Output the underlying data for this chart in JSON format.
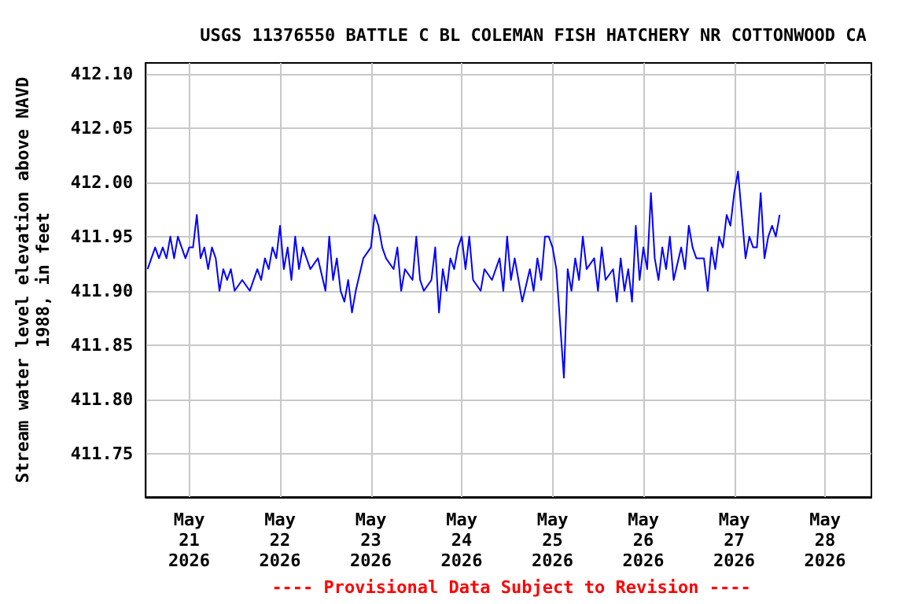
{
  "chart_data": {
    "type": "line",
    "title": "USGS 11376550 BATTLE C BL COLEMAN FISH HATCHERY NR COTTONWOOD CA",
    "ylabel": "Stream water level elevation above NAVD 1988, in feet",
    "annotations": [
      "---- Provisional Data Subject to Revision ----"
    ],
    "xlim": [
      "2026-05-20T12:30",
      "2026-05-28T12:15"
    ],
    "xticks": [
      {
        "value": "2026-05-21",
        "label": "May\n21\n2026"
      },
      {
        "value": "2026-05-22",
        "label": "May\n22\n2026"
      },
      {
        "value": "2026-05-23",
        "label": "May\n23\n2026"
      },
      {
        "value": "2026-05-24",
        "label": "May\n24\n2026"
      },
      {
        "value": "2026-05-25",
        "label": "May\n25\n2026"
      },
      {
        "value": "2026-05-26",
        "label": "May\n26\n2026"
      },
      {
        "value": "2026-05-27",
        "label": "May\n27\n2026"
      },
      {
        "value": "2026-05-28",
        "label": "May\n28\n2026"
      }
    ],
    "ylim": [
      411.71,
      412.11
    ],
    "yticks": [
      411.75,
      {
        "value": 411.8,
        "label": "411.80"
      },
      411.85,
      {
        "value": 411.9,
        "label": "411.90"
      },
      411.95,
      {
        "value": 412.0,
        "label": "412.00"
      },
      412.05,
      {
        "value": 412.1,
        "label": "412.10"
      }
    ],
    "grid": true,
    "marker": "none",
    "line_style": "solid",
    "series": [
      {
        "color": "#0000ff",
        "x": [
          "2026-05-20T13:00",
          "2026-05-20T14:00",
          "2026-05-20T15:00",
          "2026-05-20T16:00",
          "2026-05-20T17:00",
          "2026-05-20T18:00",
          "2026-05-20T19:00",
          "2026-05-20T20:00",
          "2026-05-20T21:00",
          "2026-05-20T22:00",
          "2026-05-20T23:00",
          "2026-05-21T00:00",
          "2026-05-21T01:00",
          "2026-05-21T02:00",
          "2026-05-21T03:00",
          "2026-05-21T04:00",
          "2026-05-21T05:00",
          "2026-05-21T06:00",
          "2026-05-21T07:00",
          "2026-05-21T08:00",
          "2026-05-21T09:00",
          "2026-05-21T10:00",
          "2026-05-21T11:00",
          "2026-05-21T12:00",
          "2026-05-21T14:00",
          "2026-05-21T16:00",
          "2026-05-21T18:00",
          "2026-05-21T19:00",
          "2026-05-21T20:00",
          "2026-05-21T21:00",
          "2026-05-21T22:00",
          "2026-05-21T23:00",
          "2026-05-22T00:00",
          "2026-05-22T01:00",
          "2026-05-22T02:00",
          "2026-05-22T03:00",
          "2026-05-22T04:00",
          "2026-05-22T05:00",
          "2026-05-22T06:00",
          "2026-05-22T08:00",
          "2026-05-22T10:00",
          "2026-05-22T12:00",
          "2026-05-22T13:00",
          "2026-05-22T14:00",
          "2026-05-22T15:00",
          "2026-05-22T16:00",
          "2026-05-22T17:00",
          "2026-05-22T18:00",
          "2026-05-22T19:00",
          "2026-05-22T20:00",
          "2026-05-22T22:00",
          "2026-05-23T00:00",
          "2026-05-23T01:00",
          "2026-05-23T02:00",
          "2026-05-23T03:00",
          "2026-05-23T04:00",
          "2026-05-23T06:00",
          "2026-05-23T07:00",
          "2026-05-23T08:00",
          "2026-05-23T09:00",
          "2026-05-23T11:00",
          "2026-05-23T12:00",
          "2026-05-23T13:00",
          "2026-05-23T14:00",
          "2026-05-23T16:00",
          "2026-05-23T17:00",
          "2026-05-23T18:00",
          "2026-05-23T19:00",
          "2026-05-23T20:00",
          "2026-05-23T21:00",
          "2026-05-23T22:00",
          "2026-05-23T23:00",
          "2026-05-24T00:00",
          "2026-05-24T01:00",
          "2026-05-24T02:00",
          "2026-05-24T03:00",
          "2026-05-24T05:00",
          "2026-05-24T06:00",
          "2026-05-24T08:00",
          "2026-05-24T10:00",
          "2026-05-24T11:00",
          "2026-05-24T12:00",
          "2026-05-24T13:00",
          "2026-05-24T14:00",
          "2026-05-24T16:00",
          "2026-05-24T18:00",
          "2026-05-24T19:00",
          "2026-05-24T20:00",
          "2026-05-24T21:00",
          "2026-05-24T22:00",
          "2026-05-24T23:00",
          "2026-05-25T00:00",
          "2026-05-25T01:00",
          "2026-05-25T02:00",
          "2026-05-25T03:00",
          "2026-05-25T04:00",
          "2026-05-25T05:00",
          "2026-05-25T06:00",
          "2026-05-25T07:00",
          "2026-05-25T08:00",
          "2026-05-25T09:00",
          "2026-05-25T11:00",
          "2026-05-25T12:00",
          "2026-05-25T13:00",
          "2026-05-25T14:00",
          "2026-05-25T16:00",
          "2026-05-25T17:00",
          "2026-05-25T18:00",
          "2026-05-25T19:00",
          "2026-05-25T20:00",
          "2026-05-25T21:00",
          "2026-05-25T22:00",
          "2026-05-25T23:00",
          "2026-05-26T00:00",
          "2026-05-26T01:00",
          "2026-05-26T02:00",
          "2026-05-26T03:00",
          "2026-05-26T04:00",
          "2026-05-26T05:00",
          "2026-05-26T06:00",
          "2026-05-26T07:00",
          "2026-05-26T08:00",
          "2026-05-26T10:00",
          "2026-05-26T11:00",
          "2026-05-26T12:00",
          "2026-05-26T13:00",
          "2026-05-26T14:00",
          "2026-05-26T16:00",
          "2026-05-26T17:00",
          "2026-05-26T18:00",
          "2026-05-26T19:00",
          "2026-05-26T20:00",
          "2026-05-26T21:00",
          "2026-05-26T22:00",
          "2026-05-26T23:00",
          "2026-05-27T00:00",
          "2026-05-27T01:00",
          "2026-05-27T02:00",
          "2026-05-27T03:00",
          "2026-05-27T04:00",
          "2026-05-27T05:00",
          "2026-05-27T06:00",
          "2026-05-27T07:00",
          "2026-05-27T08:00",
          "2026-05-27T09:00",
          "2026-05-27T10:00",
          "2026-05-27T11:00",
          "2026-05-27T12:00"
        ],
        "values": [
          411.92,
          411.93,
          411.94,
          411.93,
          411.94,
          411.93,
          411.95,
          411.93,
          411.95,
          411.94,
          411.93,
          411.94,
          411.94,
          411.97,
          411.93,
          411.94,
          411.92,
          411.94,
          411.93,
          411.9,
          411.92,
          411.91,
          411.92,
          411.9,
          411.91,
          411.9,
          411.92,
          411.91,
          411.93,
          411.92,
          411.94,
          411.93,
          411.96,
          411.92,
          411.94,
          411.91,
          411.95,
          411.92,
          411.94,
          411.92,
          411.93,
          411.9,
          411.95,
          411.91,
          411.93,
          411.9,
          411.89,
          411.91,
          411.88,
          411.9,
          411.93,
          411.94,
          411.97,
          411.96,
          411.94,
          411.93,
          411.92,
          411.94,
          411.9,
          411.92,
          411.91,
          411.95,
          411.91,
          411.9,
          411.91,
          411.94,
          411.88,
          411.92,
          411.9,
          411.93,
          411.92,
          411.94,
          411.95,
          411.92,
          411.95,
          411.91,
          411.9,
          411.92,
          411.91,
          411.93,
          411.9,
          411.95,
          411.91,
          411.93,
          411.89,
          411.92,
          411.9,
          411.93,
          411.91,
          411.95,
          411.95,
          411.94,
          411.92,
          411.87,
          411.82,
          411.92,
          411.9,
          411.93,
          411.91,
          411.95,
          411.92,
          411.93,
          411.9,
          411.94,
          411.91,
          411.92,
          411.89,
          411.93,
          411.9,
          411.92,
          411.89,
          411.96,
          411.91,
          411.94,
          411.92,
          411.99,
          411.93,
          411.91,
          411.94,
          411.92,
          411.95,
          411.91,
          411.94,
          411.92,
          411.96,
          411.94,
          411.93,
          411.93,
          411.9,
          411.94,
          411.92,
          411.95,
          411.94,
          411.97,
          411.96,
          411.99,
          412.01,
          411.97,
          411.93,
          411.95,
          411.94,
          411.94,
          411.99,
          411.93,
          411.95,
          411.96,
          411.95,
          411.97
        ]
      }
    ]
  }
}
